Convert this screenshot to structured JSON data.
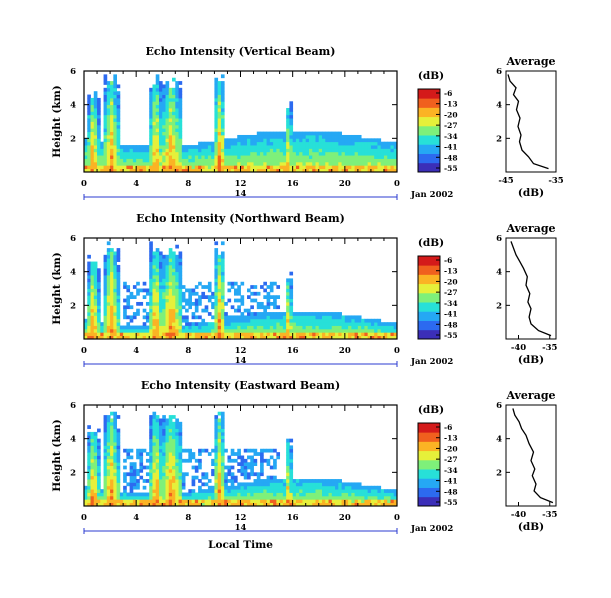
{
  "figure": {
    "colorbar_unit": "(dB)",
    "avg_title": "Average",
    "avg_xlabel": "(dB)",
    "date_label": "Jan 2002",
    "day_label": "14",
    "xlabel": "Local Time",
    "colormap": [
      "#3b2eb8",
      "#2c6af0",
      "#25a8f4",
      "#27e0d8",
      "#7ef07a",
      "#e6f03a",
      "#fbb324",
      "#f0601e",
      "#d41a1a"
    ]
  },
  "chart_data": [
    {
      "type": "heatmap",
      "title": "Echo Intensity (Vertical Beam)",
      "ylabel": "Height (km)",
      "yticks": [
        "6",
        "4",
        "2"
      ],
      "xticks": [
        "0",
        "4",
        "8",
        "12",
        "16",
        "20",
        "0"
      ],
      "ylim": [
        0,
        6
      ],
      "xlim_hours": [
        0,
        24
      ],
      "colorbar_ticks": [
        "-6",
        "-13",
        "-20",
        "-27",
        "-34",
        "-41",
        "-48",
        "-55"
      ],
      "avg_xticks": [
        "-45",
        "-35"
      ],
      "avg_yticks": [
        "6",
        "4",
        "2"
      ],
      "avg_xlim": [
        -45,
        -35
      ],
      "avg_profile": {
        "height_km": [
          0.2,
          0.5,
          0.9,
          1.3,
          1.8,
          2.2,
          2.7,
          3.2,
          3.7,
          4.2,
          4.6,
          5.0,
          5.4,
          5.8
        ],
        "db": [
          -36.5,
          -39.5,
          -40.5,
          -41.8,
          -42.3,
          -42.0,
          -42.6,
          -42.2,
          -42.9,
          -42.5,
          -43.5,
          -43.0,
          -44.2,
          -44.6
        ]
      }
    },
    {
      "type": "heatmap",
      "title": "Echo Intensity (Northward Beam)",
      "ylabel": "Height (km)",
      "yticks": [
        "6",
        "4",
        "2"
      ],
      "xticks": [
        "0",
        "4",
        "8",
        "12",
        "16",
        "20",
        "0"
      ],
      "ylim": [
        0,
        6
      ],
      "xlim_hours": [
        0,
        24
      ],
      "colorbar_ticks": [
        "-6",
        "-13",
        "-20",
        "-27",
        "-34",
        "-41",
        "-48",
        "-55"
      ],
      "avg_xticks": [
        "-40",
        "-35"
      ],
      "avg_yticks": [
        "6",
        "4",
        "2"
      ],
      "avg_xlim": [
        -42,
        -34
      ],
      "avg_profile": {
        "height_km": [
          0.2,
          0.5,
          0.9,
          1.3,
          1.8,
          2.2,
          2.7,
          3.2,
          3.7,
          4.2,
          4.6,
          5.0,
          5.4,
          5.8
        ],
        "db": [
          -34.8,
          -36.8,
          -38.0,
          -38.3,
          -38.0,
          -38.5,
          -38.2,
          -38.8,
          -38.6,
          -39.2,
          -39.8,
          -40.4,
          -40.8,
          -41.2
        ]
      }
    },
    {
      "type": "heatmap",
      "title": "Echo Intensity (Eastward Beam)",
      "ylabel": "Height (km)",
      "yticks": [
        "6",
        "4",
        "2"
      ],
      "xticks": [
        "0",
        "4",
        "8",
        "12",
        "16",
        "20",
        "0"
      ],
      "ylim": [
        0,
        6
      ],
      "xlim_hours": [
        0,
        24
      ],
      "colorbar_ticks": [
        "-6",
        "-13",
        "-20",
        "-27",
        "-34",
        "-41",
        "-48",
        "-55"
      ],
      "avg_xticks": [
        "-40",
        "-35"
      ],
      "avg_yticks": [
        "6",
        "4",
        "2"
      ],
      "avg_xlim": [
        -42,
        -34
      ],
      "avg_profile": {
        "height_km": [
          0.2,
          0.5,
          0.9,
          1.3,
          1.8,
          2.2,
          2.7,
          3.2,
          3.7,
          4.2,
          4.6,
          5.0,
          5.4,
          5.8
        ],
        "db": [
          -34.5,
          -36.5,
          -37.5,
          -37.2,
          -37.8,
          -37.4,
          -38.0,
          -37.6,
          -38.3,
          -38.8,
          -39.5,
          -39.9,
          -40.6,
          -40.9
        ]
      }
    }
  ]
}
